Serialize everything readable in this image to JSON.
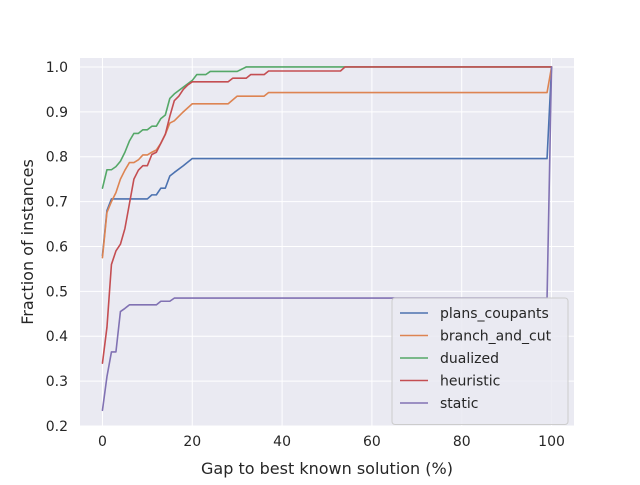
{
  "chart_data": {
    "type": "line",
    "title": "",
    "xlabel": "Gap to best known solution (%)",
    "ylabel": "Fraction of instances",
    "xlim": [
      -5,
      105
    ],
    "ylim": [
      0.2,
      1.02
    ],
    "xticks": [
      0,
      20,
      40,
      60,
      80,
      100
    ],
    "yticks": [
      0.2,
      0.3,
      0.4,
      0.5,
      0.6,
      0.7,
      0.8,
      0.9,
      1.0
    ],
    "grid": true,
    "legend": "lower-right",
    "series": [
      {
        "name": "plans_coupants",
        "color": "#4c72b0",
        "points": [
          [
            0,
            0.58
          ],
          [
            1,
            0.68
          ],
          [
            2,
            0.706
          ],
          [
            4,
            0.706
          ],
          [
            6,
            0.706
          ],
          [
            8,
            0.706
          ],
          [
            10,
            0.706
          ],
          [
            11,
            0.715
          ],
          [
            12,
            0.715
          ],
          [
            13,
            0.73
          ],
          [
            14,
            0.73
          ],
          [
            15,
            0.757
          ],
          [
            16,
            0.765
          ],
          [
            18,
            0.78
          ],
          [
            20,
            0.796
          ],
          [
            40,
            0.796
          ],
          [
            60,
            0.796
          ],
          [
            80,
            0.796
          ],
          [
            99,
            0.796
          ],
          [
            100,
            1.0
          ]
        ]
      },
      {
        "name": "branch_and_cut",
        "color": "#dd8452",
        "points": [
          [
            0,
            0.575
          ],
          [
            1,
            0.676
          ],
          [
            2,
            0.7
          ],
          [
            3,
            0.72
          ],
          [
            4,
            0.75
          ],
          [
            5,
            0.77
          ],
          [
            6,
            0.787
          ],
          [
            7,
            0.787
          ],
          [
            8,
            0.793
          ],
          [
            9,
            0.804
          ],
          [
            10,
            0.804
          ],
          [
            11,
            0.81
          ],
          [
            12,
            0.815
          ],
          [
            13,
            0.83
          ],
          [
            14,
            0.85
          ],
          [
            15,
            0.875
          ],
          [
            16,
            0.88
          ],
          [
            18,
            0.9
          ],
          [
            20,
            0.918
          ],
          [
            26,
            0.918
          ],
          [
            28,
            0.918
          ],
          [
            30,
            0.935
          ],
          [
            36,
            0.935
          ],
          [
            37,
            0.943
          ],
          [
            60,
            0.943
          ],
          [
            80,
            0.943
          ],
          [
            99,
            0.943
          ],
          [
            100,
            1.0
          ]
        ]
      },
      {
        "name": "dualized",
        "color": "#55a868",
        "points": [
          [
            0,
            0.73
          ],
          [
            1,
            0.771
          ],
          [
            2,
            0.771
          ],
          [
            3,
            0.778
          ],
          [
            4,
            0.79
          ],
          [
            5,
            0.81
          ],
          [
            6,
            0.835
          ],
          [
            7,
            0.852
          ],
          [
            8,
            0.852
          ],
          [
            9,
            0.86
          ],
          [
            10,
            0.86
          ],
          [
            11,
            0.868
          ],
          [
            12,
            0.868
          ],
          [
            13,
            0.885
          ],
          [
            14,
            0.893
          ],
          [
            15,
            0.93
          ],
          [
            16,
            0.94
          ],
          [
            18,
            0.955
          ],
          [
            20,
            0.97
          ],
          [
            21,
            0.983
          ],
          [
            23,
            0.983
          ],
          [
            24,
            0.99
          ],
          [
            30,
            0.99
          ],
          [
            32,
            1.0
          ],
          [
            54,
            1.0
          ],
          [
            80,
            1.0
          ],
          [
            100,
            1.0
          ]
        ]
      },
      {
        "name": "heuristic",
        "color": "#c44e52",
        "points": [
          [
            0,
            0.34
          ],
          [
            1,
            0.42
          ],
          [
            2,
            0.56
          ],
          [
            3,
            0.59
          ],
          [
            4,
            0.605
          ],
          [
            5,
            0.64
          ],
          [
            6,
            0.695
          ],
          [
            7,
            0.75
          ],
          [
            8,
            0.77
          ],
          [
            9,
            0.78
          ],
          [
            10,
            0.78
          ],
          [
            11,
            0.805
          ],
          [
            12,
            0.81
          ],
          [
            13,
            0.83
          ],
          [
            14,
            0.85
          ],
          [
            15,
            0.89
          ],
          [
            16,
            0.925
          ],
          [
            17,
            0.935
          ],
          [
            18,
            0.95
          ],
          [
            19,
            0.96
          ],
          [
            20,
            0.967
          ],
          [
            28,
            0.967
          ],
          [
            29,
            0.975
          ],
          [
            32,
            0.975
          ],
          [
            33,
            0.983
          ],
          [
            36,
            0.983
          ],
          [
            37,
            0.991
          ],
          [
            53,
            0.991
          ],
          [
            54,
            1.0
          ],
          [
            80,
            1.0
          ],
          [
            100,
            1.0
          ]
        ]
      },
      {
        "name": "static",
        "color": "#8172b3",
        "points": [
          [
            0,
            0.235
          ],
          [
            1,
            0.31
          ],
          [
            2,
            0.365
          ],
          [
            3,
            0.365
          ],
          [
            4,
            0.455
          ],
          [
            5,
            0.462
          ],
          [
            6,
            0.47
          ],
          [
            8,
            0.47
          ],
          [
            10,
            0.47
          ],
          [
            12,
            0.47
          ],
          [
            13,
            0.478
          ],
          [
            15,
            0.478
          ],
          [
            16,
            0.485
          ],
          [
            20,
            0.485
          ],
          [
            40,
            0.485
          ],
          [
            60,
            0.485
          ],
          [
            80,
            0.485
          ],
          [
            99,
            0.485
          ],
          [
            100,
            1.0
          ]
        ]
      }
    ]
  }
}
